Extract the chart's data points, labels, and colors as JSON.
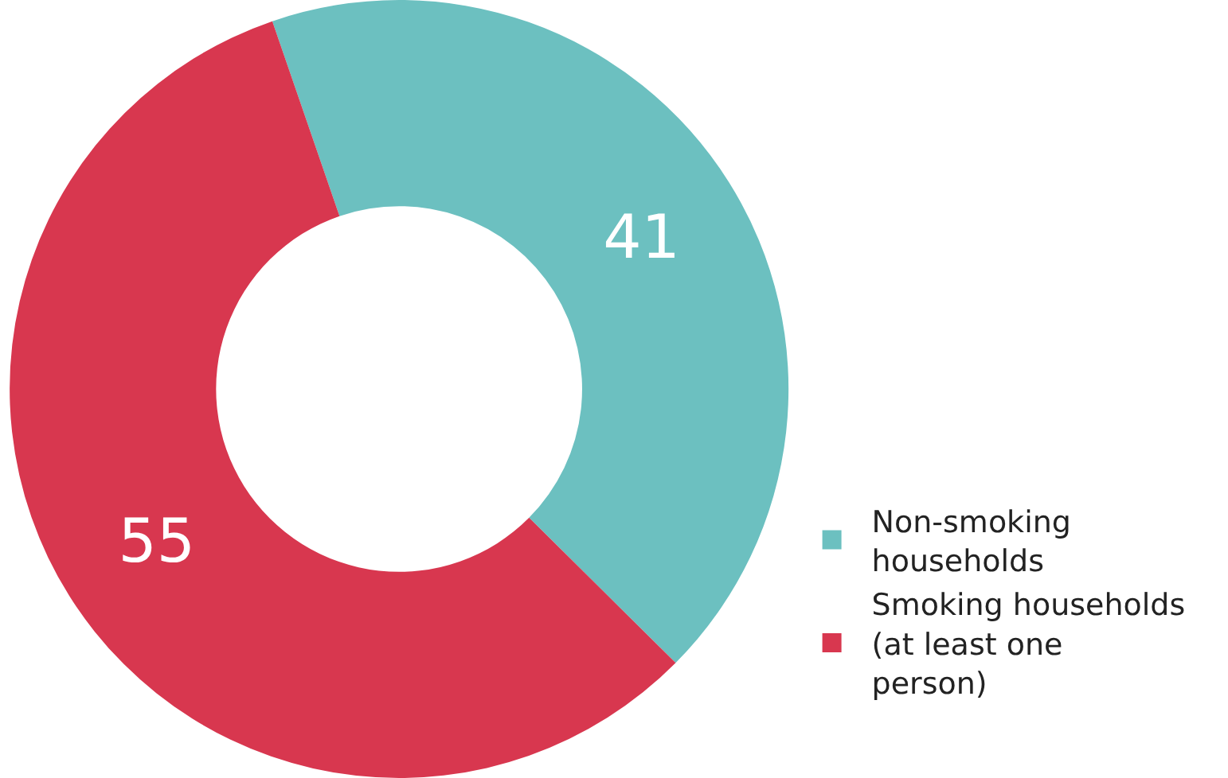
{
  "chart_data": {
    "type": "donut",
    "categories": [
      "Non-smoking households",
      "Smoking households (at least one person)"
    ],
    "values": [
      41,
      55
    ],
    "colors": [
      "#6cc0c0",
      "#d8374f"
    ],
    "data_labels": true,
    "legend": "bottom right"
  }
}
